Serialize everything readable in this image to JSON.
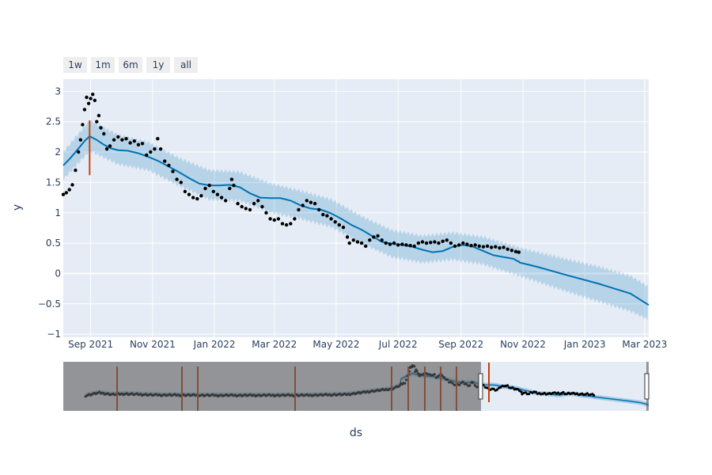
{
  "chart_data": {
    "type": "line",
    "x_type": "date",
    "xlim": [
      "2021-08-05",
      "2023-03-05"
    ],
    "ylim": [
      -1.05,
      3.2
    ],
    "xlabel": "ds",
    "ylabel": "y",
    "x_ticks": [
      {
        "date": "2021-09-01",
        "label": "Sep 2021"
      },
      {
        "date": "2021-11-01",
        "label": "Nov 2021"
      },
      {
        "date": "2022-01-01",
        "label": "Jan 2022"
      },
      {
        "date": "2022-03-01",
        "label": "Mar 2022"
      },
      {
        "date": "2022-05-01",
        "label": "May 2022"
      },
      {
        "date": "2022-07-01",
        "label": "Jul 2022"
      },
      {
        "date": "2022-09-01",
        "label": "Sep 2022"
      },
      {
        "date": "2022-11-01",
        "label": "Nov 2022"
      },
      {
        "date": "2023-01-01",
        "label": "Jan 2023"
      },
      {
        "date": "2023-03-01",
        "label": "Mar 2023"
      }
    ],
    "y_ticks": [
      {
        "value": 3,
        "label": "3"
      },
      {
        "value": 2.5,
        "label": "2.5"
      },
      {
        "value": 2,
        "label": "2"
      },
      {
        "value": 1.5,
        "label": "1.5"
      },
      {
        "value": 1,
        "label": "1"
      },
      {
        "value": 0.5,
        "label": "0.5"
      },
      {
        "value": 0,
        "label": "0"
      },
      {
        "value": -0.5,
        "label": "−0.5"
      },
      {
        "value": -1,
        "label": "−1"
      }
    ],
    "grid": true,
    "range_buttons": [
      "1w",
      "1m",
      "6m",
      "1y",
      "all"
    ],
    "changepoint": {
      "date": "2021-08-31",
      "low": 1.62,
      "high": 2.52
    },
    "series": [
      {
        "kind": "forecast",
        "points": [
          [
            "2021-08-05",
            1.78
          ],
          [
            "2021-08-12",
            1.9
          ],
          [
            "2021-08-19",
            2.04
          ],
          [
            "2021-08-26",
            2.18
          ],
          [
            "2021-08-31",
            2.26
          ],
          [
            "2021-09-07",
            2.2
          ],
          [
            "2021-09-14",
            2.12
          ],
          [
            "2021-09-21",
            2.06
          ],
          [
            "2021-09-28",
            2.03
          ],
          [
            "2021-10-08",
            2.02
          ],
          [
            "2021-10-18",
            1.98
          ],
          [
            "2021-10-28",
            1.92
          ],
          [
            "2021-11-07",
            1.85
          ],
          [
            "2021-11-17",
            1.76
          ],
          [
            "2021-11-27",
            1.67
          ],
          [
            "2021-12-07",
            1.57
          ],
          [
            "2021-12-17",
            1.48
          ],
          [
            "2021-12-27",
            1.45
          ],
          [
            "2022-01-06",
            1.45
          ],
          [
            "2022-01-16",
            1.46
          ],
          [
            "2022-01-26",
            1.42
          ],
          [
            "2022-02-05",
            1.32
          ],
          [
            "2022-02-15",
            1.25
          ],
          [
            "2022-02-25",
            1.24
          ],
          [
            "2022-03-07",
            1.24
          ],
          [
            "2022-03-17",
            1.2
          ],
          [
            "2022-03-27",
            1.12
          ],
          [
            "2022-04-06",
            1.07
          ],
          [
            "2022-04-16",
            1.05
          ],
          [
            "2022-04-26",
            0.99
          ],
          [
            "2022-05-06",
            0.9
          ],
          [
            "2022-05-16",
            0.8
          ],
          [
            "2022-05-26",
            0.72
          ],
          [
            "2022-06-05",
            0.62
          ],
          [
            "2022-06-15",
            0.52
          ],
          [
            "2022-06-25",
            0.49
          ],
          [
            "2022-07-05",
            0.47
          ],
          [
            "2022-07-15",
            0.44
          ],
          [
            "2022-07-25",
            0.39
          ],
          [
            "2022-08-04",
            0.35
          ],
          [
            "2022-08-14",
            0.37
          ],
          [
            "2022-08-24",
            0.44
          ],
          [
            "2022-09-03",
            0.47
          ],
          [
            "2022-09-13",
            0.44
          ],
          [
            "2022-09-23",
            0.37
          ],
          [
            "2022-10-03",
            0.3
          ],
          [
            "2022-10-13",
            0.27
          ],
          [
            "2022-10-23",
            0.24
          ],
          [
            "2022-10-27",
            0.2
          ],
          [
            "2022-10-28",
            0.2
          ],
          [
            "2022-10-29",
            0.18
          ],
          [
            "2022-11-15",
            0.11
          ],
          [
            "2022-12-15",
            -0.03
          ],
          [
            "2023-01-15",
            -0.17
          ],
          [
            "2023-02-15",
            -0.33
          ],
          [
            "2023-03-05",
            -0.52
          ]
        ]
      },
      {
        "kind": "uncertainty-band",
        "upper": [
          [
            "2021-08-05",
            2.0
          ],
          [
            "2021-08-31",
            2.52
          ],
          [
            "2021-09-28",
            2.28
          ],
          [
            "2021-10-28",
            2.16
          ],
          [
            "2021-11-27",
            1.9
          ],
          [
            "2021-12-27",
            1.7
          ],
          [
            "2022-01-26",
            1.67
          ],
          [
            "2022-02-25",
            1.48
          ],
          [
            "2022-03-27",
            1.36
          ],
          [
            "2022-04-26",
            1.22
          ],
          [
            "2022-05-26",
            0.94
          ],
          [
            "2022-06-25",
            0.71
          ],
          [
            "2022-07-25",
            0.62
          ],
          [
            "2022-08-24",
            0.67
          ],
          [
            "2022-09-23",
            0.6
          ],
          [
            "2022-10-29",
            0.42
          ],
          [
            "2022-12-15",
            0.23
          ],
          [
            "2023-01-15",
            0.11
          ],
          [
            "2023-02-15",
            -0.04
          ],
          [
            "2023-03-05",
            -0.22
          ]
        ],
        "lower": [
          [
            "2021-08-05",
            1.55
          ],
          [
            "2021-08-31",
            2.02
          ],
          [
            "2021-09-28",
            1.8
          ],
          [
            "2021-10-28",
            1.7
          ],
          [
            "2021-11-27",
            1.45
          ],
          [
            "2021-12-27",
            1.22
          ],
          [
            "2022-01-26",
            1.2
          ],
          [
            "2022-02-25",
            1.01
          ],
          [
            "2022-03-27",
            0.9
          ],
          [
            "2022-04-26",
            0.77
          ],
          [
            "2022-05-26",
            0.5
          ],
          [
            "2022-06-25",
            0.27
          ],
          [
            "2022-07-25",
            0.18
          ],
          [
            "2022-08-24",
            0.23
          ],
          [
            "2022-09-23",
            0.15
          ],
          [
            "2022-10-29",
            -0.04
          ],
          [
            "2022-12-15",
            -0.3
          ],
          [
            "2023-01-15",
            -0.46
          ],
          [
            "2023-02-15",
            -0.62
          ],
          [
            "2023-03-05",
            -0.76
          ]
        ]
      },
      {
        "kind": "observed",
        "points": [
          [
            "2021-08-05",
            1.3
          ],
          [
            "2021-08-08",
            1.33
          ],
          [
            "2021-08-11",
            1.38
          ],
          [
            "2021-08-14",
            1.46
          ],
          [
            "2021-08-17",
            1.7
          ],
          [
            "2021-08-20",
            2.0
          ],
          [
            "2021-08-22",
            2.2
          ],
          [
            "2021-08-24",
            2.45
          ],
          [
            "2021-08-26",
            2.7
          ],
          [
            "2021-08-28",
            2.9
          ],
          [
            "2021-08-30",
            2.8
          ],
          [
            "2021-09-01",
            2.88
          ],
          [
            "2021-09-03",
            2.95
          ],
          [
            "2021-09-05",
            2.85
          ],
          [
            "2021-09-07",
            2.5
          ],
          [
            "2021-09-09",
            2.6
          ],
          [
            "2021-09-11",
            2.4
          ],
          [
            "2021-09-14",
            2.3
          ],
          [
            "2021-09-17",
            2.05
          ],
          [
            "2021-09-20",
            2.1
          ],
          [
            "2021-09-24",
            2.2
          ],
          [
            "2021-09-28",
            2.25
          ],
          [
            "2021-10-02",
            2.2
          ],
          [
            "2021-10-06",
            2.22
          ],
          [
            "2021-10-10",
            2.15
          ],
          [
            "2021-10-14",
            2.18
          ],
          [
            "2021-10-18",
            2.12
          ],
          [
            "2021-10-22",
            2.14
          ],
          [
            "2021-10-26",
            1.95
          ],
          [
            "2021-10-30",
            2.0
          ],
          [
            "2021-11-03",
            2.05
          ],
          [
            "2021-11-06",
            2.22
          ],
          [
            "2021-11-09",
            2.05
          ],
          [
            "2021-11-13",
            1.85
          ],
          [
            "2021-11-17",
            1.78
          ],
          [
            "2021-11-21",
            1.68
          ],
          [
            "2021-11-25",
            1.55
          ],
          [
            "2021-11-29",
            1.5
          ],
          [
            "2021-12-03",
            1.35
          ],
          [
            "2021-12-07",
            1.3
          ],
          [
            "2021-12-11",
            1.25
          ],
          [
            "2021-12-15",
            1.23
          ],
          [
            "2021-12-19",
            1.28
          ],
          [
            "2021-12-23",
            1.4
          ],
          [
            "2021-12-27",
            1.45
          ],
          [
            "2021-12-31",
            1.35
          ],
          [
            "2022-01-04",
            1.3
          ],
          [
            "2022-01-08",
            1.25
          ],
          [
            "2022-01-12",
            1.2
          ],
          [
            "2022-01-16",
            1.4
          ],
          [
            "2022-01-18",
            1.55
          ],
          [
            "2022-01-20",
            1.45
          ],
          [
            "2022-01-24",
            1.15
          ],
          [
            "2022-01-28",
            1.1
          ],
          [
            "2022-02-01",
            1.07
          ],
          [
            "2022-02-05",
            1.05
          ],
          [
            "2022-02-09",
            1.15
          ],
          [
            "2022-02-13",
            1.2
          ],
          [
            "2022-02-17",
            1.1
          ],
          [
            "2022-02-21",
            1.0
          ],
          [
            "2022-02-25",
            0.9
          ],
          [
            "2022-03-01",
            0.88
          ],
          [
            "2022-03-05",
            0.9
          ],
          [
            "2022-03-09",
            0.82
          ],
          [
            "2022-03-13",
            0.8
          ],
          [
            "2022-03-17",
            0.82
          ],
          [
            "2022-03-21",
            0.9
          ],
          [
            "2022-03-25",
            1.05
          ],
          [
            "2022-03-29",
            1.12
          ],
          [
            "2022-04-02",
            1.2
          ],
          [
            "2022-04-06",
            1.17
          ],
          [
            "2022-04-10",
            1.15
          ],
          [
            "2022-04-14",
            1.05
          ],
          [
            "2022-04-18",
            0.97
          ],
          [
            "2022-04-22",
            0.95
          ],
          [
            "2022-04-26",
            0.9
          ],
          [
            "2022-04-30",
            0.85
          ],
          [
            "2022-05-04",
            0.8
          ],
          [
            "2022-05-08",
            0.76
          ],
          [
            "2022-05-12",
            0.6
          ],
          [
            "2022-05-14",
            0.5
          ],
          [
            "2022-05-18",
            0.55
          ],
          [
            "2022-05-22",
            0.52
          ],
          [
            "2022-05-26",
            0.5
          ],
          [
            "2022-05-30",
            0.45
          ],
          [
            "2022-06-03",
            0.55
          ],
          [
            "2022-06-07",
            0.6
          ],
          [
            "2022-06-11",
            0.62
          ],
          [
            "2022-06-15",
            0.55
          ],
          [
            "2022-06-19",
            0.5
          ],
          [
            "2022-06-23",
            0.48
          ],
          [
            "2022-06-27",
            0.5
          ],
          [
            "2022-07-01",
            0.47
          ],
          [
            "2022-07-05",
            0.48
          ],
          [
            "2022-07-09",
            0.47
          ],
          [
            "2022-07-13",
            0.46
          ],
          [
            "2022-07-17",
            0.45
          ],
          [
            "2022-07-21",
            0.5
          ],
          [
            "2022-07-25",
            0.52
          ],
          [
            "2022-07-29",
            0.5
          ],
          [
            "2022-08-02",
            0.51
          ],
          [
            "2022-08-06",
            0.52
          ],
          [
            "2022-08-10",
            0.5
          ],
          [
            "2022-08-14",
            0.53
          ],
          [
            "2022-08-18",
            0.55
          ],
          [
            "2022-08-22",
            0.5
          ],
          [
            "2022-08-26",
            0.45
          ],
          [
            "2022-08-30",
            0.47
          ],
          [
            "2022-09-03",
            0.5
          ],
          [
            "2022-09-07",
            0.48
          ],
          [
            "2022-09-11",
            0.46
          ],
          [
            "2022-09-15",
            0.47
          ],
          [
            "2022-09-19",
            0.45
          ],
          [
            "2022-09-23",
            0.44
          ],
          [
            "2022-09-27",
            0.45
          ],
          [
            "2022-10-01",
            0.43
          ],
          [
            "2022-10-05",
            0.44
          ],
          [
            "2022-10-09",
            0.42
          ],
          [
            "2022-10-13",
            0.43
          ],
          [
            "2022-10-17",
            0.4
          ],
          [
            "2022-10-21",
            0.38
          ],
          [
            "2022-10-25",
            0.36
          ],
          [
            "2022-10-28",
            0.35
          ]
        ]
      }
    ],
    "rangeslider": {
      "selected_from": "2021-08-05",
      "selected_to": "2023-03-05",
      "changepoint_markers": [
        "2021-08-31",
        "2019-09-15",
        "2019-12-01",
        "2020-01-01",
        "2020-06-01",
        "2021-01-01",
        "2021-02-01",
        "2021-03-01",
        "2021-04-01",
        "2021-05-01"
      ]
    }
  }
}
